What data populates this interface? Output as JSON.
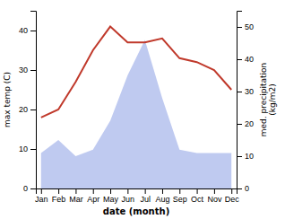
{
  "chart_data": {
    "type": "line",
    "categories": [
      "Jan",
      "Feb",
      "Mar",
      "Apr",
      "May",
      "Jun",
      "Jul",
      "Aug",
      "Sep",
      "Oct",
      "Nov",
      "Dec"
    ],
    "xlabel": "date (month)",
    "ylabel": "max temp (C)",
    "y2label": "med. precipitation\n(kg/m2)",
    "ylim": [
      0,
      45
    ],
    "yticks": [
      0,
      10,
      20,
      30,
      40
    ],
    "y2lim": [
      0,
      55
    ],
    "y2ticks": [
      0,
      10,
      20,
      30,
      40,
      50
    ],
    "grid": false,
    "series": [
      {
        "type": "area",
        "axis": "y2",
        "color": "#b8c4ee",
        "values": [
          11,
          15,
          10,
          12,
          21,
          35,
          46,
          28,
          12,
          11,
          11,
          11
        ]
      },
      {
        "type": "line",
        "color": "#c0392b",
        "values": [
          18,
          20,
          27,
          35,
          41,
          37,
          37,
          38,
          33,
          32,
          30,
          25
        ]
      }
    ]
  }
}
